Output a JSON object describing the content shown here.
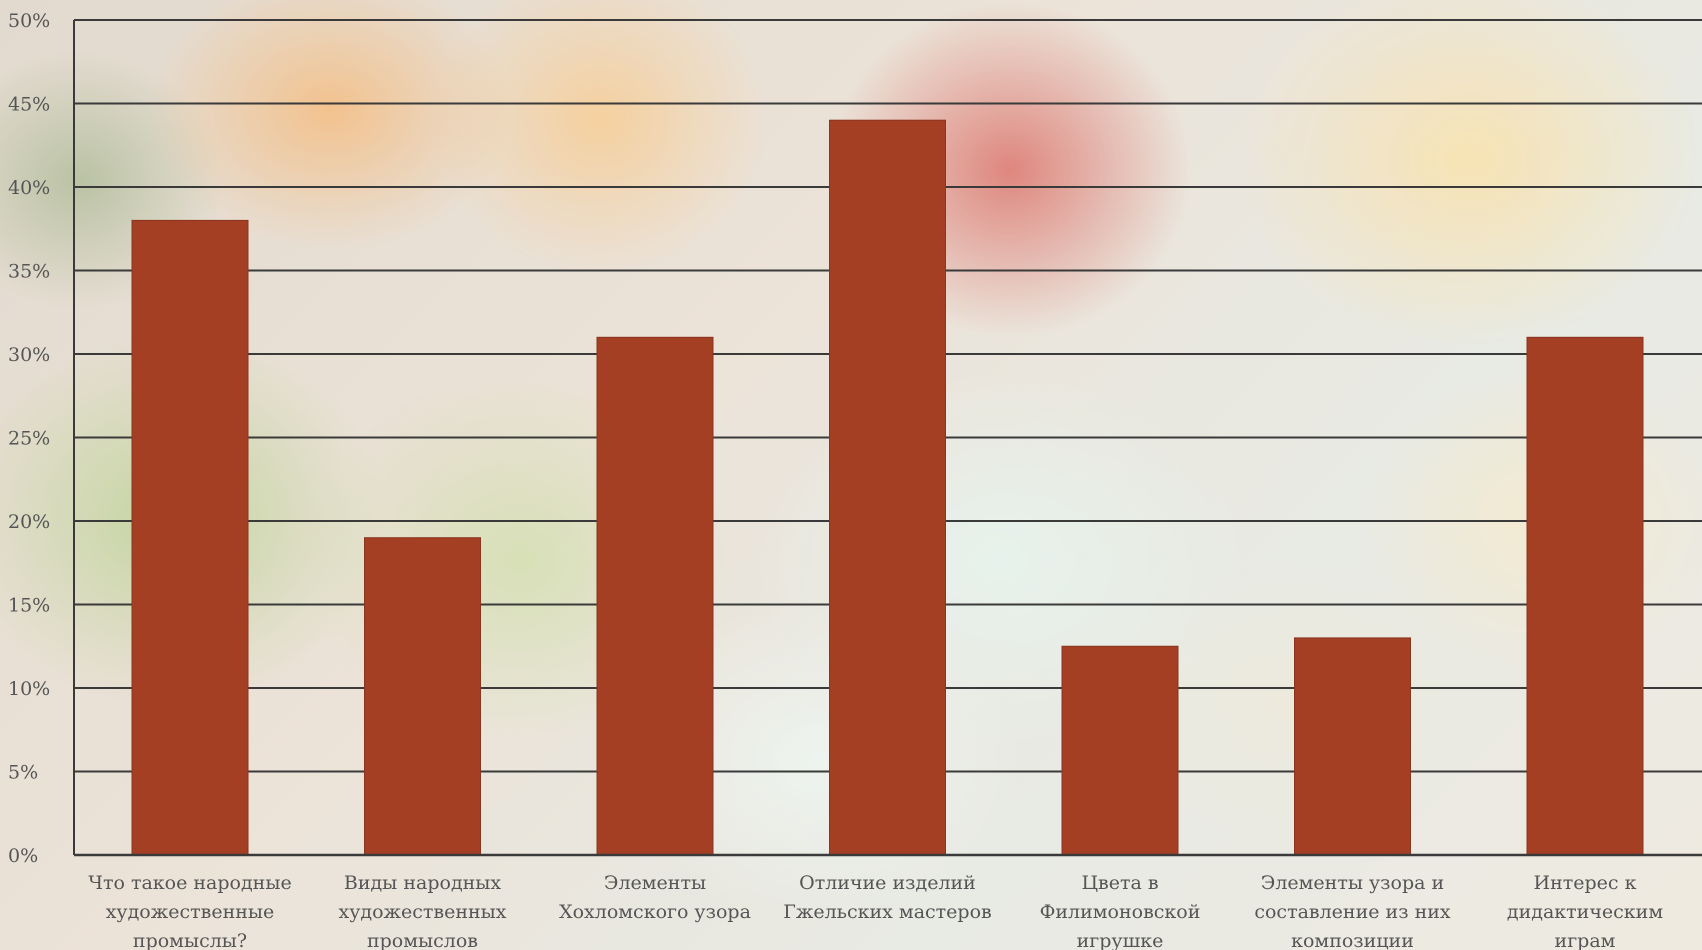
{
  "chart_data": {
    "type": "bar",
    "categories": [
      [
        "Что такое народные",
        "художественные",
        "промыслы?"
      ],
      [
        "Виды народных",
        "художественных",
        "промыслов"
      ],
      [
        "Элементы",
        "Хохломского узора"
      ],
      [
        "Отличие изделий",
        "Гжельских мастеров"
      ],
      [
        "Цвета в",
        "Филимоновской",
        "игрушке"
      ],
      [
        "Элементы узора и",
        "составление из них",
        "композиции"
      ],
      [
        "Интерес к",
        "дидактическим",
        "играм"
      ]
    ],
    "values": [
      38,
      19,
      31,
      44,
      12.5,
      13,
      31
    ],
    "ylim": [
      0,
      50
    ],
    "yticks": [
      "0%",
      "5%",
      "10%",
      "15%",
      "20%",
      "25%",
      "30%",
      "35%",
      "40%",
      "45%",
      "50%"
    ],
    "grid": true,
    "colors": {
      "bar": "#a53f24",
      "bar_edge": "#8a3520",
      "grid": "#3a3a3a",
      "text": "#555555"
    }
  }
}
